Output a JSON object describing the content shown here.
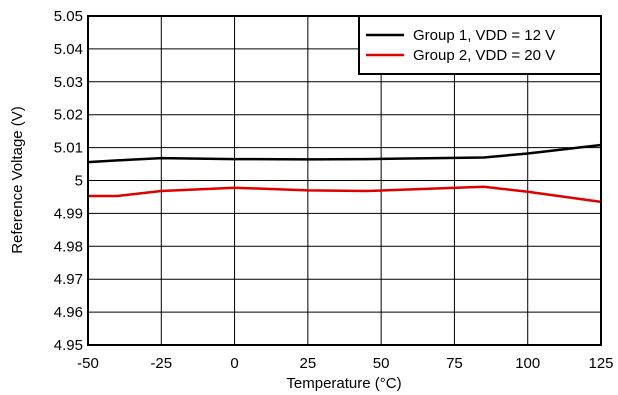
{
  "chart_data": {
    "type": "line",
    "xlabel": "Temperature (°C)",
    "ylabel": "Reference Voltage (V)",
    "xlim": [
      -50,
      125
    ],
    "ylim": [
      4.95,
      5.05
    ],
    "x_ticks": [
      "-50",
      "-25",
      "0",
      "25",
      "50",
      "75",
      "100",
      "125"
    ],
    "y_ticks": [
      "4.95",
      "4.96",
      "4.97",
      "4.98",
      "4.99",
      "5",
      "5.01",
      "5.02",
      "5.03",
      "5.04",
      "5.05"
    ],
    "grid": true,
    "legend_position": "top-right",
    "series": [
      {
        "name": "Group 1, VDD = 12 V",
        "color": "#000000",
        "x": [
          -50,
          -40,
          -25,
          0,
          25,
          45,
          85,
          100,
          125
        ],
        "y": [
          5.0056,
          5.0061,
          5.0068,
          5.0065,
          5.0064,
          5.0065,
          5.007,
          5.0082,
          5.0108
        ]
      },
      {
        "name": "Group 2, VDD = 20 V",
        "color": "#e00000",
        "x": [
          -50,
          -40,
          -25,
          0,
          25,
          45,
          85,
          100,
          125
        ],
        "y": [
          4.9953,
          4.9953,
          4.9968,
          4.9978,
          4.997,
          4.9968,
          4.9981,
          4.9966,
          4.9935
        ]
      }
    ]
  }
}
